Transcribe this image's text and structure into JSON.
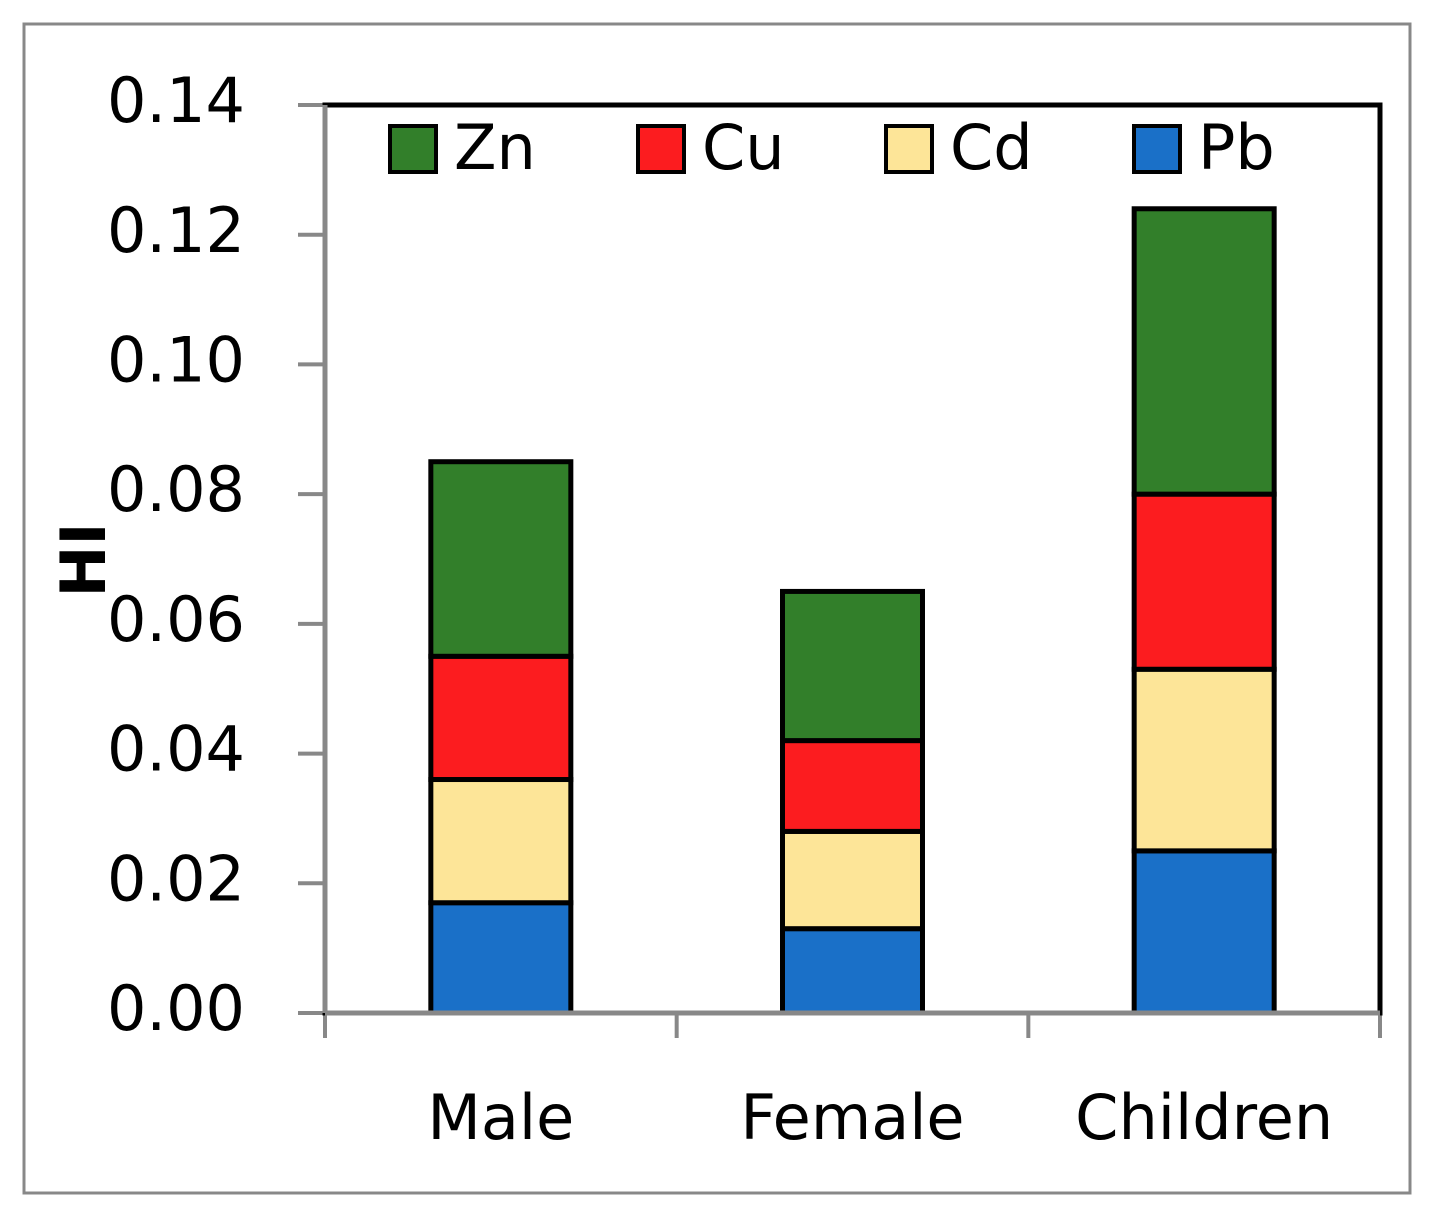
{
  "chart_data": {
    "type": "stacked_bar",
    "y_label": "HI",
    "categories": [
      "Male",
      "Female",
      "Children"
    ],
    "series": [
      {
        "name": "Pb",
        "color": "#1a70c8",
        "values": [
          0.017,
          0.013,
          0.025
        ]
      },
      {
        "name": "Cd",
        "color": "#fde598",
        "values": [
          0.019,
          0.015,
          0.028
        ]
      },
      {
        "name": "Cu",
        "color": "#fc1c1f",
        "values": [
          0.019,
          0.014,
          0.027
        ]
      },
      {
        "name": "Zn",
        "color": "#327f2a",
        "values": [
          0.03,
          0.023,
          0.044
        ]
      }
    ],
    "ylim": [
      0,
      0.14
    ],
    "yticks": [
      {
        "value": 0,
        "label": "0.00"
      },
      {
        "value": 0.02,
        "label": "0.02"
      },
      {
        "value": 0.04,
        "label": "0.04"
      },
      {
        "value": 0.06,
        "label": "0.06"
      },
      {
        "value": 0.08,
        "label": "0.08"
      },
      {
        "value": 0.1,
        "label": "0.10"
      },
      {
        "value": 0.12,
        "label": "0.12"
      },
      {
        "value": 0.14,
        "label": "0.14"
      }
    ],
    "grid": false,
    "legend": "top"
  }
}
